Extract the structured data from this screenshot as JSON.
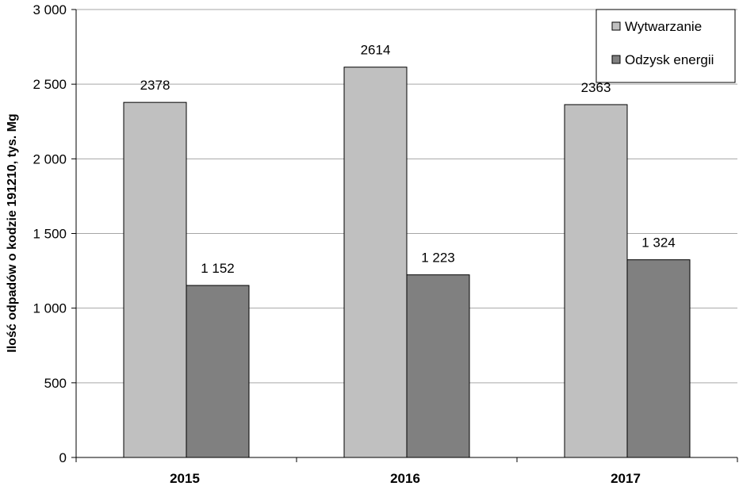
{
  "chart_data": {
    "type": "bar",
    "categories": [
      "2015",
      "2016",
      "2017"
    ],
    "series": [
      {
        "name": "Wytwarzanie",
        "values": [
          2378,
          2614,
          2363
        ],
        "labels": [
          "2378",
          "2614",
          "2363"
        ],
        "color": "#c0c0c0"
      },
      {
        "name": "Odzysk energii",
        "values": [
          1152,
          1223,
          1324
        ],
        "labels": [
          "1 152",
          "1 223",
          "1 324"
        ],
        "color": "#808080"
      }
    ],
    "ylabel": "Ilość odpadów o kodzie 191210, tys. Mg",
    "ylim": [
      0,
      3000
    ],
    "yticks": [
      0,
      500,
      1000,
      1500,
      2000,
      2500,
      3000
    ],
    "ytick_labels": [
      "0",
      "500",
      "1 000",
      "1 500",
      "2 000",
      "2 500",
      "3 000"
    ],
    "grid": true,
    "legend_position": "top-right"
  }
}
